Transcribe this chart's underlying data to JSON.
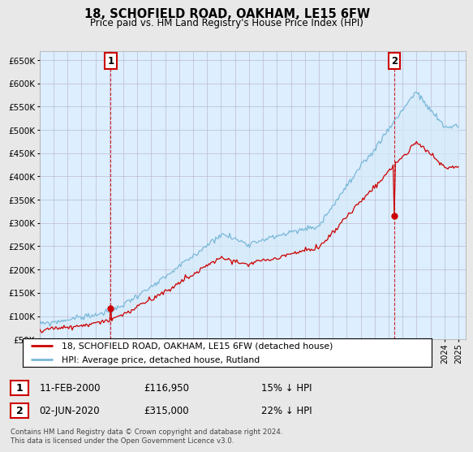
{
  "title": "18, SCHOFIELD ROAD, OAKHAM, LE15 6FW",
  "subtitle": "Price paid vs. HM Land Registry's House Price Index (HPI)",
  "hpi_color": "#7ab8d9",
  "price_color": "#cc0000",
  "fill_color": "#d6eaf8",
  "marker_color": "#cc0000",
  "background_color": "#e8e8e8",
  "plot_bg_color": "#ddeeff",
  "grid_color": "#bbbbcc",
  "ylim": [
    50000,
    670000
  ],
  "yticks": [
    50000,
    100000,
    150000,
    200000,
    250000,
    300000,
    350000,
    400000,
    450000,
    500000,
    550000,
    600000,
    650000
  ],
  "xlim_start": 1995.0,
  "xlim_end": 2025.5,
  "sale1_year": 2000.12,
  "sale1_price": 116950,
  "sale1_label": "1",
  "sale2_year": 2020.42,
  "sale2_price": 315000,
  "sale2_label": "2",
  "legend_line1": "18, SCHOFIELD ROAD, OAKHAM, LE15 6FW (detached house)",
  "legend_line2": "HPI: Average price, detached house, Rutland",
  "annotation1_date": "11-FEB-2000",
  "annotation1_price": "£116,950",
  "annotation1_pct": "15% ↓ HPI",
  "annotation2_date": "02-JUN-2020",
  "annotation2_price": "£315,000",
  "annotation2_pct": "22% ↓ HPI",
  "footnote": "Contains HM Land Registry data © Crown copyright and database right 2024.\nThis data is licensed under the Open Government Licence v3.0."
}
